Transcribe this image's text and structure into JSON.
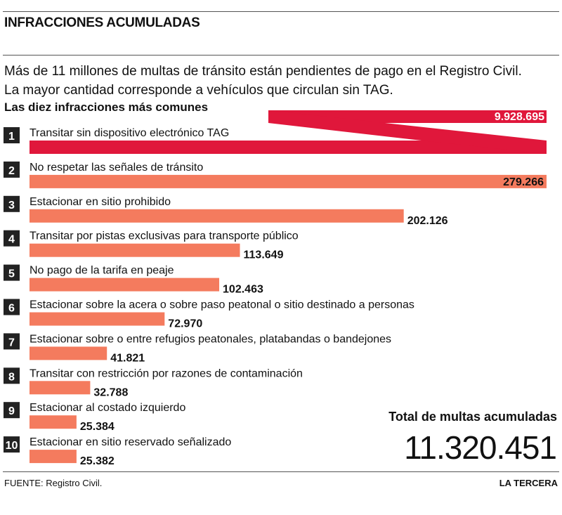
{
  "header": {
    "title": "INFRACCIONES ACUMULADAS",
    "subtitle": "Más de 11 millones de multas de tránsito están pendientes de pago en el Registro Civil. La mayor cantidad corresponde a vehículos que circulan sin TAG.",
    "section": "Las diez infracciones más comunes"
  },
  "chart_data": {
    "type": "bar",
    "orientation": "horizontal",
    "title": "Las diez infracciones más comunes",
    "categories": [
      "Transitar sin dispositivo electrónico TAG",
      "No respetar las señales de tránsito",
      "Estacionar en sitio prohibido",
      "Transitar por pistas exclusivas para transporte público",
      "No pago de la tarifa en peaje",
      "Estacionar sobre la acera o sobre paso peatonal o sitio destinado a personas",
      "Estacionar sobre o entre refugios peatonales, platabandas o bandejones",
      "Transitar con restricción por razones de contaminación",
      "Estacionar al costado izquierdo",
      "Estacionar en sitio reservado señalizado"
    ],
    "ranks": [
      "1",
      "2",
      "3",
      "4",
      "5",
      "6",
      "7",
      "8",
      "9",
      "10"
    ],
    "values": [
      9928695,
      279266,
      202126,
      113649,
      102463,
      72970,
      41821,
      32788,
      25384,
      25382
    ],
    "value_labels": [
      "9.928.695",
      "279.266",
      "202.126",
      "113.649",
      "102.463",
      "72.970",
      "41.821",
      "32.788",
      "25.384",
      "25.382"
    ],
    "broken_axis_first_bar": true,
    "colors": {
      "first": "#e0173b",
      "others": "#f47b5e",
      "rank_box": "#222222"
    },
    "grid": false
  },
  "total": {
    "label": "Total de multas acumuladas",
    "value": "11.320.451"
  },
  "footer": {
    "source": "FUENTE: Registro Civil.",
    "brand": "LA TERCERA"
  }
}
